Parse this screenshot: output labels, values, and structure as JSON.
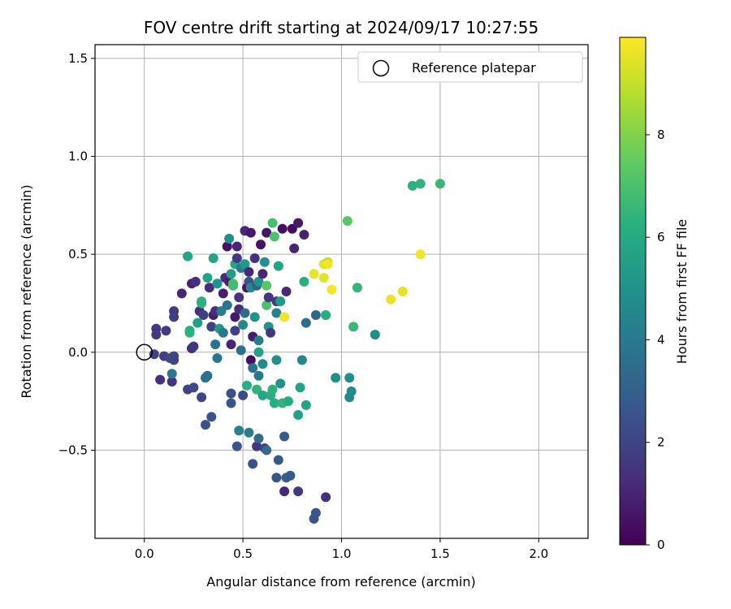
{
  "chart_data": {
    "type": "scatter",
    "title": "FOV centre drift starting at 2024/09/17 10:27:55",
    "xlabel": "Angular distance from reference (arcmin)",
    "ylabel": "Rotation from reference (arcmin)",
    "xlim": [
      -0.25,
      2.25
    ],
    "ylim": [
      -0.95,
      1.57
    ],
    "xticks": [
      0.0,
      0.5,
      1.0,
      1.5,
      2.0
    ],
    "xtick_labels": [
      "0.0",
      "0.5",
      "1.0",
      "1.5",
      "2.0"
    ],
    "yticks": [
      -0.5,
      0.0,
      0.5,
      1.0,
      1.5
    ],
    "ytick_labels": [
      "−0.5",
      "0.0",
      "0.5",
      "1.0",
      "1.5"
    ],
    "grid": true,
    "legend": {
      "position": "top-right",
      "label": "Reference platepar"
    },
    "reference_point": {
      "x": 0.0,
      "y": 0.0
    },
    "colorbar": {
      "label": "Hours from first FF file",
      "colormap": "viridis",
      "range": [
        0,
        9.9
      ],
      "ticks": [
        0,
        2,
        4,
        6,
        8
      ],
      "tick_labels": [
        "0",
        "2",
        "4",
        "6",
        "8"
      ]
    },
    "points": [
      [
        0.06,
        0.12,
        1.6
      ],
      [
        0.11,
        0.11,
        1.7
      ],
      [
        0.06,
        0.09,
        1.7
      ],
      [
        0.05,
        -0.01,
        1.9
      ],
      [
        0.1,
        -0.02,
        1.8
      ],
      [
        0.15,
        -0.02,
        2.0
      ],
      [
        0.15,
        -0.04,
        2.0
      ],
      [
        0.13,
        -0.03,
        2.1
      ],
      [
        0.08,
        -0.14,
        1.3
      ],
      [
        0.14,
        -0.15,
        1.5
      ],
      [
        0.14,
        -0.11,
        3.9
      ],
      [
        0.15,
        0.21,
        1.7
      ],
      [
        0.15,
        0.18,
        1.8
      ],
      [
        0.19,
        0.3,
        1.1
      ],
      [
        0.22,
        -0.19,
        1.9
      ],
      [
        0.25,
        -0.18,
        2.2
      ],
      [
        0.29,
        -0.23,
        2.0
      ],
      [
        0.31,
        -0.37,
        2.4
      ],
      [
        0.34,
        -0.33,
        2.5
      ],
      [
        0.31,
        -0.13,
        3.8
      ],
      [
        0.32,
        -0.12,
        3.6
      ],
      [
        0.22,
        0.49,
        5.7
      ],
      [
        0.24,
        0.35,
        1.0
      ],
      [
        0.26,
        0.36,
        1.3
      ],
      [
        0.23,
        0.11,
        6.0
      ],
      [
        0.23,
        0.1,
        6.3
      ],
      [
        0.24,
        0.02,
        1.2
      ],
      [
        0.25,
        0.03,
        1.5
      ],
      [
        0.27,
        0.15,
        5.5
      ],
      [
        0.28,
        0.21,
        1.4
      ],
      [
        0.29,
        0.25,
        6.4
      ],
      [
        0.29,
        0.26,
        6.3
      ],
      [
        0.3,
        0.19,
        1.8
      ],
      [
        0.32,
        0.38,
        5.7
      ],
      [
        0.33,
        0.33,
        1.2
      ],
      [
        0.34,
        0.13,
        1.9
      ],
      [
        0.35,
        0.48,
        5.8
      ],
      [
        0.35,
        0.19,
        0.8
      ],
      [
        0.36,
        0.21,
        1.3
      ],
      [
        0.36,
        0.04,
        3.8
      ],
      [
        0.37,
        -0.03,
        4.0
      ],
      [
        0.37,
        0.35,
        5.0
      ],
      [
        0.38,
        0.12,
        5.2
      ],
      [
        0.39,
        0.21,
        4.1
      ],
      [
        0.4,
        0.1,
        3.9
      ],
      [
        0.4,
        0.3,
        0.9
      ],
      [
        0.41,
        0.38,
        1.3
      ],
      [
        0.42,
        0.54,
        0.5
      ],
      [
        0.42,
        0.24,
        3.7
      ],
      [
        0.43,
        0.58,
        4.9
      ],
      [
        0.43,
        0.36,
        0.9
      ],
      [
        0.44,
        0.4,
        5.4
      ],
      [
        0.44,
        0.04,
        1.0
      ],
      [
        0.44,
        -0.21,
        2.4
      ],
      [
        0.44,
        -0.26,
        2.6
      ],
      [
        0.45,
        0.35,
        7.0
      ],
      [
        0.45,
        0.34,
        6.8
      ],
      [
        0.46,
        0.18,
        0.7
      ],
      [
        0.46,
        0.11,
        1.8
      ],
      [
        0.46,
        0.45,
        5.8
      ],
      [
        0.47,
        0.54,
        1.1
      ],
      [
        0.47,
        0.48,
        1.6
      ],
      [
        0.47,
        -0.48,
        2.6
      ],
      [
        0.48,
        -0.4,
        4.4
      ],
      [
        0.48,
        0.22,
        1.2
      ],
      [
        0.48,
        0.28,
        1.6
      ],
      [
        0.49,
        0.43,
        4.2
      ],
      [
        0.49,
        0.01,
        3.6
      ],
      [
        0.5,
        -0.22,
        2.2
      ],
      [
        0.5,
        0.14,
        4.6
      ],
      [
        0.51,
        0.62,
        1.1
      ],
      [
        0.51,
        0.2,
        3.4
      ],
      [
        0.51,
        0.45,
        5.2
      ],
      [
        0.52,
        0.33,
        0.6
      ],
      [
        0.52,
        -0.17,
        6.2
      ],
      [
        0.53,
        0.36,
        2.4
      ],
      [
        0.53,
        0.41,
        1.1
      ],
      [
        0.53,
        -0.41,
        4.2
      ],
      [
        0.54,
        -0.04,
        0.4
      ],
      [
        0.54,
        0.61,
        0.7
      ],
      [
        0.54,
        0.33,
        4.7
      ],
      [
        0.55,
        0.08,
        0.8
      ],
      [
        0.55,
        -0.08,
        3.7
      ],
      [
        0.55,
        -0.57,
        2.4
      ],
      [
        0.56,
        0.48,
        1.4
      ],
      [
        0.56,
        0.18,
        5.1
      ],
      [
        0.57,
        0.34,
        3.0
      ],
      [
        0.57,
        -0.19,
        6.4
      ],
      [
        0.57,
        -0.48,
        1.5
      ],
      [
        0.58,
        0.36,
        5.0
      ],
      [
        0.58,
        -0.12,
        4.0
      ],
      [
        0.58,
        -0.44,
        3.4
      ],
      [
        0.58,
        0.06,
        4.2
      ],
      [
        0.58,
        0.0,
        5.7
      ],
      [
        0.59,
        0.55,
        0.5
      ],
      [
        0.6,
        -0.06,
        4.6
      ],
      [
        0.6,
        -0.22,
        5.9
      ],
      [
        0.6,
        0.4,
        1.1
      ],
      [
        0.61,
        0.46,
        5.0
      ],
      [
        0.61,
        -0.49,
        2.0
      ],
      [
        0.62,
        0.61,
        0.6
      ],
      [
        0.62,
        0.34,
        7.3
      ],
      [
        0.62,
        0.24,
        7.0
      ],
      [
        0.62,
        -0.5,
        3.4
      ],
      [
        0.63,
        0.13,
        5.0
      ],
      [
        0.63,
        0.28,
        1.5
      ],
      [
        0.64,
        0.1,
        1.6
      ],
      [
        0.64,
        -0.22,
        6.2
      ],
      [
        0.65,
        0.66,
        6.9
      ],
      [
        0.65,
        -0.19,
        6.3
      ],
      [
        0.66,
        0.59,
        7.0
      ],
      [
        0.66,
        -0.26,
        6.1
      ],
      [
        0.67,
        0.2,
        4.3
      ],
      [
        0.67,
        0.26,
        1.7
      ],
      [
        0.67,
        -0.04,
        4.9
      ],
      [
        0.67,
        -0.64,
        2.6
      ],
      [
        0.68,
        0.44,
        5.7
      ],
      [
        0.68,
        -0.55,
        2.7
      ],
      [
        0.69,
        0.26,
        5.3
      ],
      [
        0.69,
        -0.16,
        5.0
      ],
      [
        0.7,
        0.63,
        0.4
      ],
      [
        0.7,
        -0.26,
        6.4
      ],
      [
        0.71,
        0.18,
        9.7
      ],
      [
        0.71,
        -0.43,
        2.8
      ],
      [
        0.71,
        -0.71,
        1.1
      ],
      [
        0.72,
        0.31,
        1.1
      ],
      [
        0.72,
        -0.64,
        2.9
      ],
      [
        0.73,
        -0.25,
        6.0
      ],
      [
        0.74,
        -0.63,
        2.8
      ],
      [
        0.75,
        0.63,
        0.3
      ],
      [
        0.76,
        0.53,
        1.0
      ],
      [
        0.78,
        -0.71,
        1.6
      ],
      [
        0.78,
        0.66,
        0.7
      ],
      [
        0.78,
        -0.32,
        5.6
      ],
      [
        0.79,
        -0.18,
        5.7
      ],
      [
        0.8,
        -0.04,
        4.5
      ],
      [
        0.81,
        0.36,
        6.2
      ],
      [
        0.81,
        0.6,
        0.9
      ],
      [
        0.82,
        -0.27,
        5.7
      ],
      [
        0.82,
        0.15,
        3.5
      ],
      [
        0.86,
        -0.85,
        2.5
      ],
      [
        0.86,
        0.4,
        9.6
      ],
      [
        0.87,
        -0.82,
        2.6
      ],
      [
        0.87,
        0.19,
        3.3
      ],
      [
        0.91,
        0.38,
        9.5
      ],
      [
        0.91,
        0.45,
        9.4
      ],
      [
        0.92,
        -0.74,
        1.3
      ],
      [
        0.92,
        0.19,
        6.1
      ],
      [
        0.93,
        0.46,
        8.8
      ],
      [
        0.93,
        0.45,
        9.7
      ],
      [
        0.95,
        0.32,
        9.8
      ],
      [
        0.97,
        -0.13,
        4.9
      ],
      [
        1.03,
        0.67,
        7.3
      ],
      [
        1.04,
        -0.13,
        4.8
      ],
      [
        1.04,
        -0.23,
        4.6
      ],
      [
        1.05,
        -0.2,
        4.7
      ],
      [
        1.06,
        0.13,
        6.6
      ],
      [
        1.08,
        0.33,
        6.5
      ],
      [
        1.17,
        0.09,
        4.8
      ],
      [
        1.25,
        0.27,
        9.6
      ],
      [
        1.31,
        0.31,
        9.5
      ],
      [
        1.36,
        0.85,
        6.3
      ],
      [
        1.4,
        0.86,
        6.4
      ],
      [
        1.4,
        0.5,
        9.7
      ],
      [
        1.5,
        0.86,
        6.6
      ]
    ]
  }
}
